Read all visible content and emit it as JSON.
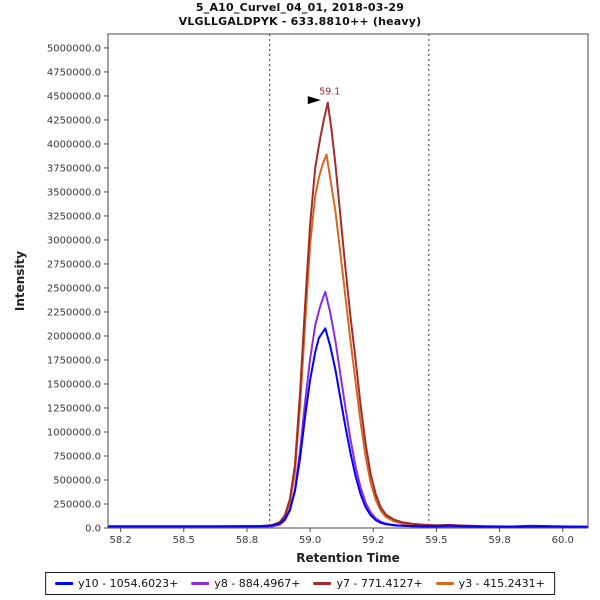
{
  "chart_data": {
    "type": "line",
    "title": "5_A10_Curvel_04_01, 2018-03-29",
    "subtitle": "VLGLLGALDPYK - 633.8810++ (heavy)",
    "xlabel": "Retention Time",
    "ylabel": "Intensity",
    "xlim": [
      58.2,
      60.1
    ],
    "ylim": [
      0,
      5145000
    ],
    "grid": false,
    "legend_position": "bottom",
    "frame_color": "#4a4a4a",
    "boundary_color": "#333333",
    "x_ticks": [
      {
        "v": 58.25,
        "label": "58.2"
      },
      {
        "v": 58.5,
        "label": "58.5"
      },
      {
        "v": 58.75,
        "label": "58.8"
      },
      {
        "v": 59.0,
        "label": "59.0"
      },
      {
        "v": 59.25,
        "label": "59.2"
      },
      {
        "v": 59.5,
        "label": "59.5"
      },
      {
        "v": 59.75,
        "label": "59.8"
      },
      {
        "v": 60.0,
        "label": "60.0"
      }
    ],
    "y_ticks": [
      {
        "v": 0,
        "label": "0.0"
      },
      {
        "v": 250000,
        "label": "250000.0"
      },
      {
        "v": 500000,
        "label": "500000.0"
      },
      {
        "v": 750000,
        "label": "750000.0"
      },
      {
        "v": 1000000,
        "label": "1000000.0"
      },
      {
        "v": 1250000,
        "label": "1250000.0"
      },
      {
        "v": 1500000,
        "label": "1500000.0"
      },
      {
        "v": 1750000,
        "label": "1750000.0"
      },
      {
        "v": 2000000,
        "label": "2000000.0"
      },
      {
        "v": 2250000,
        "label": "2250000.0"
      },
      {
        "v": 2500000,
        "label": "2500000.0"
      },
      {
        "v": 2750000,
        "label": "2750000.0"
      },
      {
        "v": 3000000,
        "label": "3000000.0"
      },
      {
        "v": 3250000,
        "label": "3250000.0"
      },
      {
        "v": 3500000,
        "label": "3500000.0"
      },
      {
        "v": 3750000,
        "label": "3750000.0"
      },
      {
        "v": 4000000,
        "label": "4000000.0"
      },
      {
        "v": 4250000,
        "label": "4250000.0"
      },
      {
        "v": 4500000,
        "label": "4500000.0"
      },
      {
        "v": 4750000,
        "label": "4750000.0"
      },
      {
        "v": 5000000,
        "label": "5000000.0"
      }
    ],
    "integration_boundaries": [
      58.84,
      59.47
    ],
    "peak_annotation": {
      "label": "59.1",
      "rt": 59.07,
      "intensity": 4430000,
      "color": "#A52A2A"
    },
    "series": [
      {
        "id": "y10",
        "name": "y10 - 1054.6023+",
        "color": "#0000FF",
        "points": [
          [
            58.2,
            18000
          ],
          [
            58.4,
            18000
          ],
          [
            58.6,
            19000
          ],
          [
            58.8,
            20000
          ],
          [
            58.85,
            26000
          ],
          [
            58.88,
            46000
          ],
          [
            58.9,
            92000
          ],
          [
            58.92,
            190000
          ],
          [
            58.94,
            380000
          ],
          [
            58.96,
            720000
          ],
          [
            58.98,
            1160000
          ],
          [
            59.0,
            1540000
          ],
          [
            59.02,
            1830000
          ],
          [
            59.035,
            1980000
          ],
          [
            59.06,
            2080000
          ],
          [
            59.08,
            1890000
          ],
          [
            59.1,
            1650000
          ],
          [
            59.12,
            1350000
          ],
          [
            59.14,
            1050000
          ],
          [
            59.16,
            780000
          ],
          [
            59.18,
            540000
          ],
          [
            59.2,
            350000
          ],
          [
            59.22,
            215000
          ],
          [
            59.24,
            131000
          ],
          [
            59.26,
            81000
          ],
          [
            59.28,
            53000
          ],
          [
            59.3,
            39000
          ],
          [
            59.34,
            26000
          ],
          [
            59.4,
            21000
          ],
          [
            59.45,
            18000
          ],
          [
            59.5,
            17000
          ],
          [
            59.55,
            26000
          ],
          [
            59.6,
            18000
          ],
          [
            59.7,
            15000
          ],
          [
            59.8,
            15000
          ],
          [
            59.9,
            19000
          ],
          [
            60.1,
            14000
          ]
        ]
      },
      {
        "id": "y8",
        "name": "y8 - 884.4967+",
        "color": "#8A2BE2",
        "points": [
          [
            58.2,
            10000
          ],
          [
            58.4,
            10000
          ],
          [
            58.6,
            11000
          ],
          [
            58.8,
            12000
          ],
          [
            58.85,
            18000
          ],
          [
            58.88,
            36000
          ],
          [
            58.9,
            80000
          ],
          [
            58.92,
            180000
          ],
          [
            58.94,
            400000
          ],
          [
            58.96,
            800000
          ],
          [
            58.98,
            1310000
          ],
          [
            59.0,
            1760000
          ],
          [
            59.02,
            2110000
          ],
          [
            59.04,
            2310000
          ],
          [
            59.06,
            2460000
          ],
          [
            59.08,
            2240000
          ],
          [
            59.1,
            1950000
          ],
          [
            59.12,
            1600000
          ],
          [
            59.14,
            1250000
          ],
          [
            59.16,
            920000
          ],
          [
            59.18,
            640000
          ],
          [
            59.2,
            420000
          ],
          [
            59.22,
            260000
          ],
          [
            59.24,
            160000
          ],
          [
            59.26,
            100000
          ],
          [
            59.28,
            66000
          ],
          [
            59.3,
            46000
          ],
          [
            59.34,
            28000
          ],
          [
            59.4,
            19000
          ],
          [
            59.45,
            15000
          ],
          [
            59.5,
            13000
          ],
          [
            59.6,
            11000
          ],
          [
            59.7,
            9000
          ],
          [
            59.8,
            9000
          ],
          [
            59.9,
            11000
          ],
          [
            60.1,
            8000
          ]
        ]
      },
      {
        "id": "y7",
        "name": "y7 - 771.4127+",
        "color": "#A52A2A",
        "points": [
          [
            58.2,
            15000
          ],
          [
            58.35,
            15000
          ],
          [
            58.5,
            15000
          ],
          [
            58.65,
            16000
          ],
          [
            58.8,
            18000
          ],
          [
            58.85,
            30000
          ],
          [
            58.88,
            62000
          ],
          [
            58.9,
            130000
          ],
          [
            58.92,
            300000
          ],
          [
            58.94,
            650000
          ],
          [
            58.96,
            1400000
          ],
          [
            58.98,
            2320000
          ],
          [
            59.0,
            3160000
          ],
          [
            59.02,
            3750000
          ],
          [
            59.04,
            4060000
          ],
          [
            59.055,
            4260000
          ],
          [
            59.07,
            4430000
          ],
          [
            59.085,
            4140000
          ],
          [
            59.1,
            3790000
          ],
          [
            59.12,
            3250000
          ],
          [
            59.14,
            2700000
          ],
          [
            59.16,
            2200000
          ],
          [
            59.18,
            1750000
          ],
          [
            59.2,
            1280000
          ],
          [
            59.22,
            870000
          ],
          [
            59.24,
            560000
          ],
          [
            59.26,
            350000
          ],
          [
            59.28,
            215000
          ],
          [
            59.3,
            140000
          ],
          [
            59.33,
            90000
          ],
          [
            59.36,
            62000
          ],
          [
            59.4,
            46000
          ],
          [
            59.45,
            34000
          ],
          [
            59.5,
            29000
          ],
          [
            59.55,
            31000
          ],
          [
            59.6,
            26000
          ],
          [
            59.7,
            19000
          ],
          [
            59.8,
            16000
          ],
          [
            59.88,
            24000
          ],
          [
            59.95,
            18000
          ],
          [
            60.1,
            13000
          ]
        ]
      },
      {
        "id": "y3",
        "name": "y3 - 415.2431+",
        "color": "#D2691E",
        "points": [
          [
            58.2,
            12000
          ],
          [
            58.35,
            12000
          ],
          [
            58.5,
            12000
          ],
          [
            58.65,
            13000
          ],
          [
            58.8,
            15000
          ],
          [
            58.85,
            25000
          ],
          [
            58.88,
            52000
          ],
          [
            58.9,
            110000
          ],
          [
            58.92,
            260000
          ],
          [
            58.94,
            580000
          ],
          [
            58.96,
            1260000
          ],
          [
            58.98,
            2120000
          ],
          [
            59.0,
            2950000
          ],
          [
            59.02,
            3460000
          ],
          [
            59.035,
            3650000
          ],
          [
            59.05,
            3790000
          ],
          [
            59.065,
            3890000
          ],
          [
            59.08,
            3640000
          ],
          [
            59.1,
            3300000
          ],
          [
            59.12,
            2860000
          ],
          [
            59.14,
            2400000
          ],
          [
            59.16,
            1950000
          ],
          [
            59.18,
            1520000
          ],
          [
            59.2,
            1100000
          ],
          [
            59.22,
            740000
          ],
          [
            59.24,
            470000
          ],
          [
            59.26,
            290000
          ],
          [
            59.28,
            180000
          ],
          [
            59.3,
            115000
          ],
          [
            59.33,
            72000
          ],
          [
            59.36,
            50000
          ],
          [
            59.4,
            37000
          ],
          [
            59.45,
            28000
          ],
          [
            59.5,
            23000
          ],
          [
            59.6,
            18000
          ],
          [
            59.7,
            14000
          ],
          [
            59.8,
            12000
          ],
          [
            59.88,
            18000
          ],
          [
            59.95,
            14000
          ],
          [
            60.1,
            11000
          ]
        ]
      }
    ]
  }
}
